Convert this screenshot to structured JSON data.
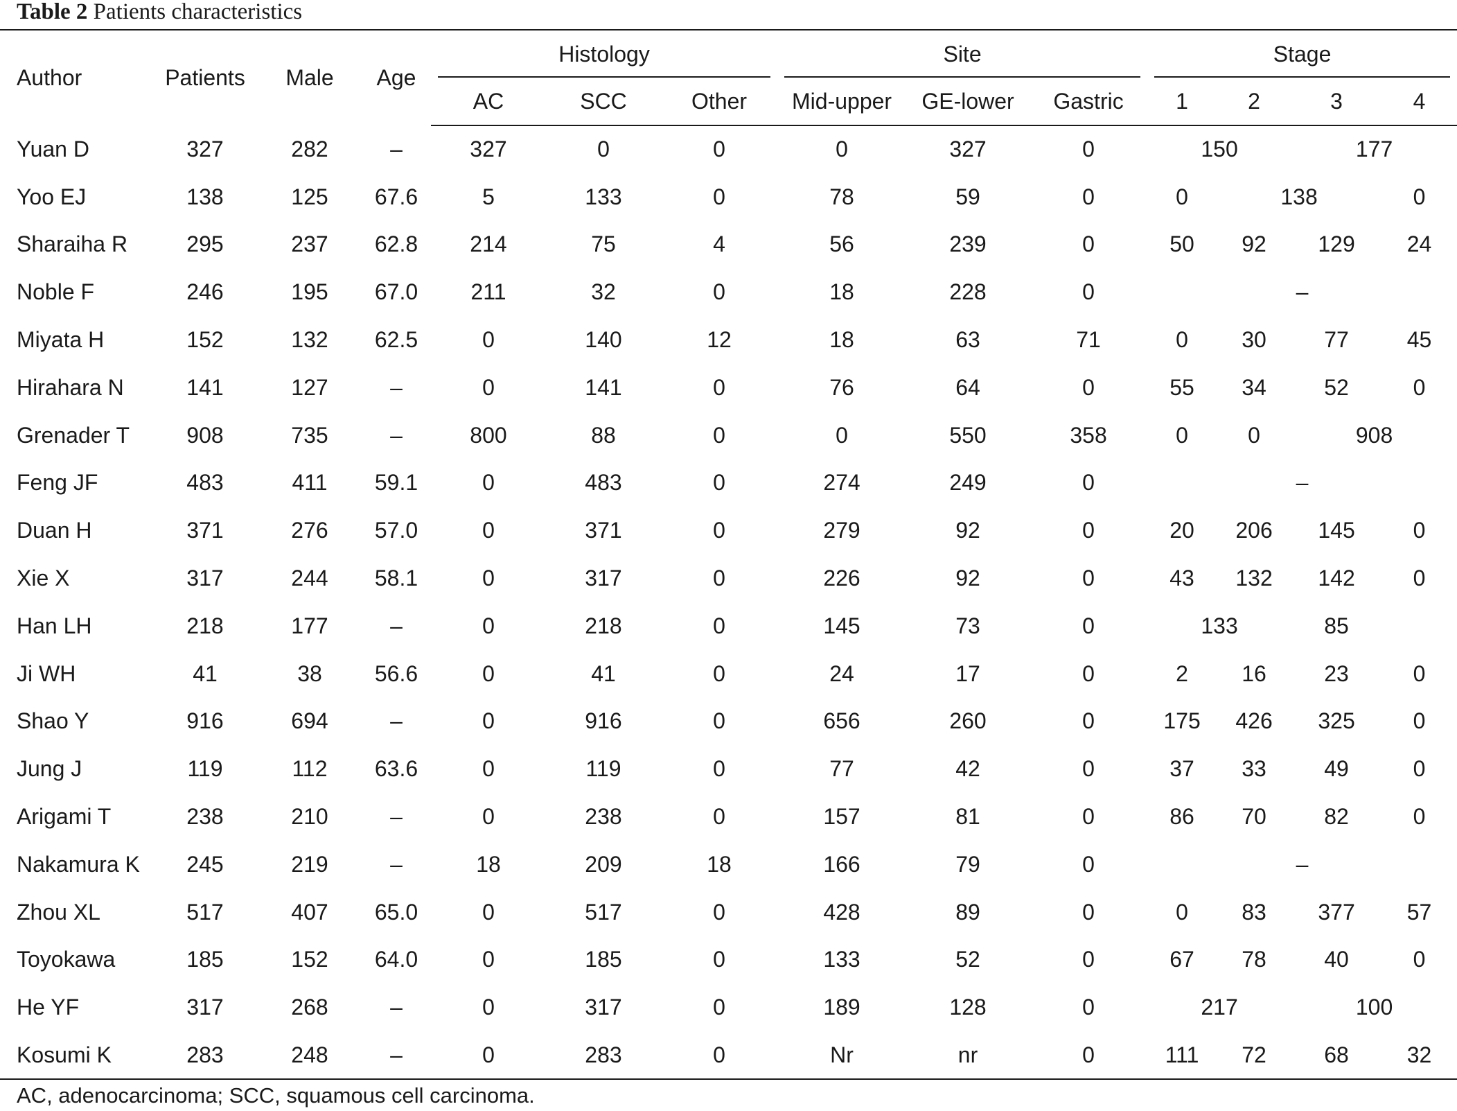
{
  "caption": {
    "label": "Table 2",
    "title": "Patients characteristics"
  },
  "headers": {
    "author": "Author",
    "patients": "Patients",
    "male": "Male",
    "age": "Age",
    "histology": "Histology",
    "site": "Site",
    "stage": "Stage",
    "ac": "AC",
    "scc": "SCC",
    "other": "Other",
    "mid_upper": "Mid-upper",
    "ge_lower": "GE-lower",
    "gastric": "Gastric",
    "stage_1": "1",
    "stage_2": "2",
    "stage_3": "3",
    "stage_4": "4"
  },
  "rows": [
    {
      "author": "Yuan D",
      "patients": "327",
      "male": "282",
      "age": "–",
      "ac": "327",
      "scc": "0",
      "other": "0",
      "mid_upper": "0",
      "ge_lower": "327",
      "gastric": "0",
      "stage_12": "150",
      "stage_34": "177"
    },
    {
      "author": "Yoo EJ",
      "patients": "138",
      "male": "125",
      "age": "67.6",
      "ac": "5",
      "scc": "133",
      "other": "0",
      "mid_upper": "78",
      "ge_lower": "59",
      "gastric": "0",
      "stage_1": "0",
      "stage_23": "138",
      "stage_4": "0"
    },
    {
      "author": "Sharaiha R",
      "patients": "295",
      "male": "237",
      "age": "62.8",
      "ac": "214",
      "scc": "75",
      "other": "4",
      "mid_upper": "56",
      "ge_lower": "239",
      "gastric": "0",
      "stage_1": "50",
      "stage_2": "92",
      "stage_3": "129",
      "stage_4": "24"
    },
    {
      "author": "Noble F",
      "patients": "246",
      "male": "195",
      "age": "67.0",
      "ac": "211",
      "scc": "32",
      "other": "0",
      "mid_upper": "18",
      "ge_lower": "228",
      "gastric": "0",
      "stage_all": "–"
    },
    {
      "author": "Miyata H",
      "patients": "152",
      "male": "132",
      "age": "62.5",
      "ac": "0",
      "scc": "140",
      "other": "12",
      "mid_upper": "18",
      "ge_lower": "63",
      "gastric": "71",
      "stage_1": "0",
      "stage_2": "30",
      "stage_3": "77",
      "stage_4": "45"
    },
    {
      "author": "Hirahara N",
      "patients": "141",
      "male": "127",
      "age": "–",
      "ac": "0",
      "scc": "141",
      "other": "0",
      "mid_upper": "76",
      "ge_lower": "64",
      "gastric": "0",
      "stage_1": "55",
      "stage_2": "34",
      "stage_3": "52",
      "stage_4": "0"
    },
    {
      "author": "Grenader T",
      "patients": "908",
      "male": "735",
      "age": "–",
      "ac": "800",
      "scc": "88",
      "other": "0",
      "mid_upper": "0",
      "ge_lower": "550",
      "gastric": "358",
      "stage_1": "0",
      "stage_2": "0",
      "stage_34": "908"
    },
    {
      "author": "Feng JF",
      "patients": "483",
      "male": "411",
      "age": "59.1",
      "ac": "0",
      "scc": "483",
      "other": "0",
      "mid_upper": "274",
      "ge_lower": "249",
      "gastric": "0",
      "stage_all": "–"
    },
    {
      "author": "Duan H",
      "patients": "371",
      "male": "276",
      "age": "57.0",
      "ac": "0",
      "scc": "371",
      "other": "0",
      "mid_upper": "279",
      "ge_lower": "92",
      "gastric": "0",
      "stage_1": "20",
      "stage_2": "206",
      "stage_3": "145",
      "stage_4": "0"
    },
    {
      "author": "Xie X",
      "patients": "317",
      "male": "244",
      "age": "58.1",
      "ac": "0",
      "scc": "317",
      "other": "0",
      "mid_upper": "226",
      "ge_lower": "92",
      "gastric": "0",
      "stage_1": "43",
      "stage_2": "132",
      "stage_3": "142",
      "stage_4": "0"
    },
    {
      "author": "Han LH",
      "patients": "218",
      "male": "177",
      "age": "–",
      "ac": "0",
      "scc": "218",
      "other": "0",
      "mid_upper": "145",
      "ge_lower": "73",
      "gastric": "0",
      "stage_12": "133",
      "stage_3": "85"
    },
    {
      "author": "Ji WH",
      "patients": "41",
      "male": "38",
      "age": "56.6",
      "ac": "0",
      "scc": "41",
      "other": "0",
      "mid_upper": "24",
      "ge_lower": "17",
      "gastric": "0",
      "stage_1": "2",
      "stage_2": "16",
      "stage_3": "23",
      "stage_4": "0"
    },
    {
      "author": "Shao Y",
      "patients": "916",
      "male": "694",
      "age": "–",
      "ac": "0",
      "scc": "916",
      "other": "0",
      "mid_upper": "656",
      "ge_lower": "260",
      "gastric": "0",
      "stage_1": "175",
      "stage_2": "426",
      "stage_3": "325",
      "stage_4": "0"
    },
    {
      "author": "Jung J",
      "patients": "119",
      "male": "112",
      "age": "63.6",
      "ac": "0",
      "scc": "119",
      "other": "0",
      "mid_upper": "77",
      "ge_lower": "42",
      "gastric": "0",
      "stage_1": "37",
      "stage_2": "33",
      "stage_3": "49",
      "stage_4": "0"
    },
    {
      "author": "Arigami T",
      "patients": "238",
      "male": "210",
      "age": "–",
      "ac": "0",
      "scc": "238",
      "other": "0",
      "mid_upper": "157",
      "ge_lower": "81",
      "gastric": "0",
      "stage_1": "86",
      "stage_2": "70",
      "stage_3": "82",
      "stage_4": "0"
    },
    {
      "author": "Nakamura K",
      "patients": "245",
      "male": "219",
      "age": "–",
      "ac": "18",
      "scc": "209",
      "other": "18",
      "mid_upper": "166",
      "ge_lower": "79",
      "gastric": "0",
      "stage_all": "–"
    },
    {
      "author": "Zhou XL",
      "patients": "517",
      "male": "407",
      "age": "65.0",
      "ac": "0",
      "scc": "517",
      "other": "0",
      "mid_upper": "428",
      "ge_lower": "89",
      "gastric": "0",
      "stage_1": "0",
      "stage_2": "83",
      "stage_3": "377",
      "stage_4": "57"
    },
    {
      "author": "Toyokawa",
      "patients": "185",
      "male": "152",
      "age": "64.0",
      "ac": "0",
      "scc": "185",
      "other": "0",
      "mid_upper": "133",
      "ge_lower": "52",
      "gastric": "0",
      "stage_1": "67",
      "stage_2": "78",
      "stage_3": "40",
      "stage_4": "0"
    },
    {
      "author": "He YF",
      "patients": "317",
      "male": "268",
      "age": "–",
      "ac": "0",
      "scc": "317",
      "other": "0",
      "mid_upper": "189",
      "ge_lower": "128",
      "gastric": "0",
      "stage_12": "217",
      "stage_34": "100"
    },
    {
      "author": "Kosumi K",
      "patients": "283",
      "male": "248",
      "age": "–",
      "ac": "0",
      "scc": "283",
      "other": "0",
      "mid_upper": "Nr",
      "ge_lower": "nr",
      "gastric": "0",
      "stage_1": "111",
      "stage_2": "72",
      "stage_3": "68",
      "stage_4": "32"
    }
  ],
  "footnote": "AC, adenocarcinoma; SCC, squamous cell carcinoma."
}
